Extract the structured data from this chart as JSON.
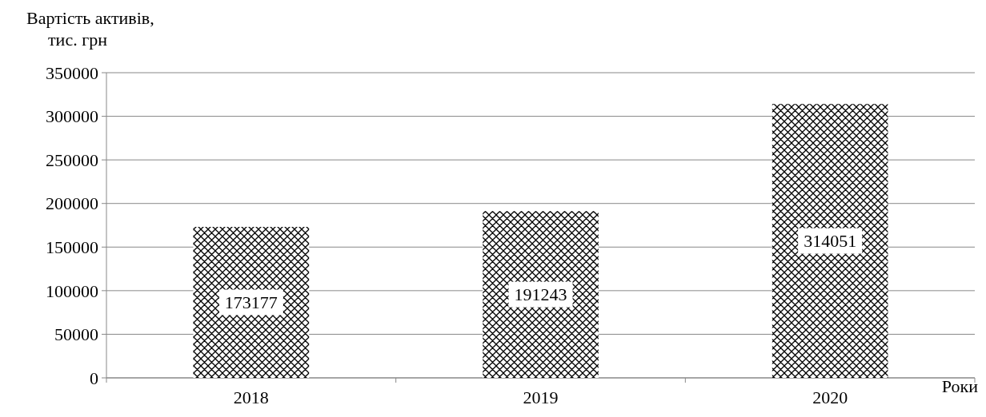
{
  "chart_data": {
    "type": "bar",
    "ylabel": "Вартість активів,\nтис. грн",
    "xlabel": "Роки",
    "categories": [
      "2018",
      "2019",
      "2020"
    ],
    "values": [
      173177,
      191243,
      314051
    ],
    "color": "#000000",
    "ylim": [
      0,
      350000
    ],
    "yticks": [
      0,
      50000,
      100000,
      150000,
      200000,
      250000,
      300000,
      350000
    ],
    "grid": "y",
    "data_labels": true
  }
}
